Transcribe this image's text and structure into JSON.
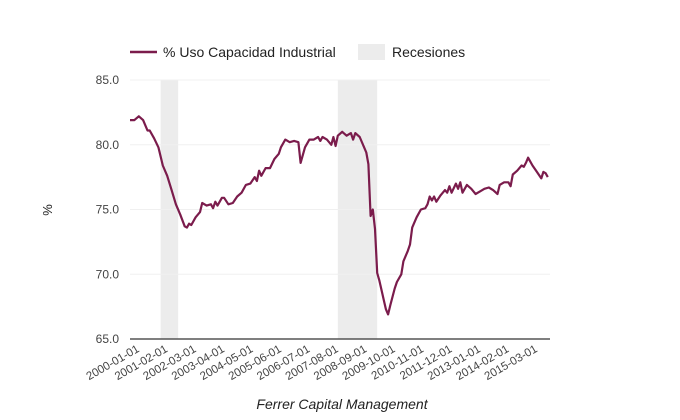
{
  "chart_data": {
    "type": "line",
    "title": "",
    "xlabel": "Ferrer Capital Management",
    "ylabel": "%",
    "ylim": [
      65.0,
      85.0
    ],
    "yticks": [
      "65.0",
      "70.0",
      "75.0",
      "80.0",
      "85.0"
    ],
    "xticks": [
      "2000-01-01",
      "2001-02-01",
      "2002-03-01",
      "2003-04-01",
      "2004-05-01",
      "2005-06-01",
      "2006-07-01",
      "2007-08-01",
      "2008-09-01",
      "2009-10-01",
      "2010-11-01",
      "2011-12-01",
      "2013-01-01",
      "2014-02-01",
      "2015-03-01"
    ],
    "x_range": [
      "2000-01",
      "2015-12"
    ],
    "grid": true,
    "legend": {
      "placement": "top-left",
      "entries": [
        {
          "label": "% Uso Capacidad Industrial",
          "kind": "line",
          "color": "#7b1c4c"
        },
        {
          "label": "Recesiones",
          "kind": "band",
          "color": "#ececec"
        }
      ]
    },
    "recessions": [
      {
        "start": "2001-03",
        "end": "2001-11"
      },
      {
        "start": "2007-12",
        "end": "2009-06"
      }
    ],
    "series": [
      {
        "name": "% Uso Capacidad Industrial",
        "color": "#7b1c4c",
        "points": [
          [
            "2000-01",
            81.9
          ],
          [
            "2000-03",
            81.9
          ],
          [
            "2000-05",
            82.2
          ],
          [
            "2000-07",
            81.9
          ],
          [
            "2000-09",
            81.1
          ],
          [
            "2000-10",
            81.1
          ],
          [
            "2000-12",
            80.5
          ],
          [
            "2001-02",
            79.8
          ],
          [
            "2001-04",
            78.4
          ],
          [
            "2001-06",
            77.6
          ],
          [
            "2001-08",
            76.5
          ],
          [
            "2001-10",
            75.4
          ],
          [
            "2001-12",
            74.6
          ],
          [
            "2002-02",
            73.7
          ],
          [
            "2002-03",
            73.6
          ],
          [
            "2002-04",
            73.9
          ],
          [
            "2002-05",
            73.8
          ],
          [
            "2002-07",
            74.4
          ],
          [
            "2002-09",
            74.8
          ],
          [
            "2002-10",
            75.5
          ],
          [
            "2002-12",
            75.3
          ],
          [
            "2003-02",
            75.4
          ],
          [
            "2003-03",
            75.1
          ],
          [
            "2003-04",
            75.6
          ],
          [
            "2003-05",
            75.3
          ],
          [
            "2003-07",
            75.9
          ],
          [
            "2003-08",
            75.9
          ],
          [
            "2003-10",
            75.4
          ],
          [
            "2003-12",
            75.5
          ],
          [
            "2004-02",
            76.0
          ],
          [
            "2004-04",
            76.3
          ],
          [
            "2004-06",
            76.9
          ],
          [
            "2004-08",
            77.0
          ],
          [
            "2004-10",
            77.5
          ],
          [
            "2004-11",
            77.2
          ],
          [
            "2004-12",
            78.0
          ],
          [
            "2005-01",
            77.6
          ],
          [
            "2005-03",
            78.2
          ],
          [
            "2005-05",
            78.2
          ],
          [
            "2005-07",
            78.9
          ],
          [
            "2005-09",
            79.3
          ],
          [
            "2005-10",
            79.8
          ],
          [
            "2005-12",
            80.4
          ],
          [
            "2006-02",
            80.2
          ],
          [
            "2006-04",
            80.3
          ],
          [
            "2006-06",
            80.2
          ],
          [
            "2006-07",
            78.6
          ],
          [
            "2006-09",
            79.8
          ],
          [
            "2006-11",
            80.4
          ],
          [
            "2007-01",
            80.4
          ],
          [
            "2007-03",
            80.6
          ],
          [
            "2007-04",
            80.3
          ],
          [
            "2007-05",
            80.6
          ],
          [
            "2007-07",
            80.4
          ],
          [
            "2007-09",
            80.0
          ],
          [
            "2007-10",
            80.6
          ],
          [
            "2007-11",
            79.9
          ],
          [
            "2007-12",
            80.7
          ],
          [
            "2008-02",
            81.0
          ],
          [
            "2008-04",
            80.7
          ],
          [
            "2008-06",
            80.9
          ],
          [
            "2008-07",
            80.4
          ],
          [
            "2008-08",
            80.9
          ],
          [
            "2008-10",
            80.6
          ],
          [
            "2008-12",
            79.8
          ],
          [
            "2009-01",
            79.4
          ],
          [
            "2009-02",
            78.5
          ],
          [
            "2009-03",
            74.5
          ],
          [
            "2009-04",
            75.0
          ],
          [
            "2009-05",
            73.5
          ],
          [
            "2009-06",
            70.1
          ],
          [
            "2009-07",
            69.5
          ],
          [
            "2009-09",
            68.0
          ],
          [
            "2009-10",
            67.3
          ],
          [
            "2009-11",
            66.9
          ],
          [
            "2009-12",
            67.6
          ],
          [
            "2010-02",
            68.9
          ],
          [
            "2010-03",
            69.4
          ],
          [
            "2010-05",
            70.0
          ],
          [
            "2010-06",
            71.0
          ],
          [
            "2010-08",
            71.8
          ],
          [
            "2010-09",
            72.3
          ],
          [
            "2010-10",
            73.6
          ],
          [
            "2010-12",
            74.4
          ],
          [
            "2011-02",
            75.0
          ],
          [
            "2011-04",
            75.1
          ],
          [
            "2011-05",
            75.4
          ],
          [
            "2011-06",
            76.0
          ],
          [
            "2011-07",
            75.7
          ],
          [
            "2011-08",
            76.0
          ],
          [
            "2011-09",
            75.6
          ],
          [
            "2011-11",
            76.1
          ],
          [
            "2012-01",
            76.5
          ],
          [
            "2012-02",
            76.3
          ],
          [
            "2012-03",
            76.8
          ],
          [
            "2012-04",
            76.3
          ],
          [
            "2012-06",
            77.0
          ],
          [
            "2012-07",
            76.6
          ],
          [
            "2012-08",
            77.1
          ],
          [
            "2012-09",
            76.3
          ],
          [
            "2012-11",
            76.9
          ],
          [
            "2013-01",
            76.6
          ],
          [
            "2013-03",
            76.2
          ],
          [
            "2013-05",
            76.4
          ],
          [
            "2013-07",
            76.6
          ],
          [
            "2013-09",
            76.7
          ],
          [
            "2013-11",
            76.5
          ],
          [
            "2014-01",
            76.2
          ],
          [
            "2014-02",
            76.9
          ],
          [
            "2014-04",
            77.1
          ],
          [
            "2014-06",
            77.1
          ],
          [
            "2014-07",
            76.8
          ],
          [
            "2014-08",
            77.7
          ],
          [
            "2014-10",
            78.0
          ],
          [
            "2014-12",
            78.4
          ],
          [
            "2015-01",
            78.3
          ],
          [
            "2015-02",
            78.6
          ],
          [
            "2015-03",
            79.0
          ],
          [
            "2015-05",
            78.4
          ],
          [
            "2015-07",
            77.9
          ],
          [
            "2015-09",
            77.4
          ],
          [
            "2015-10",
            77.9
          ],
          [
            "2015-11",
            77.8
          ],
          [
            "2015-12",
            77.5
          ]
        ]
      }
    ]
  }
}
